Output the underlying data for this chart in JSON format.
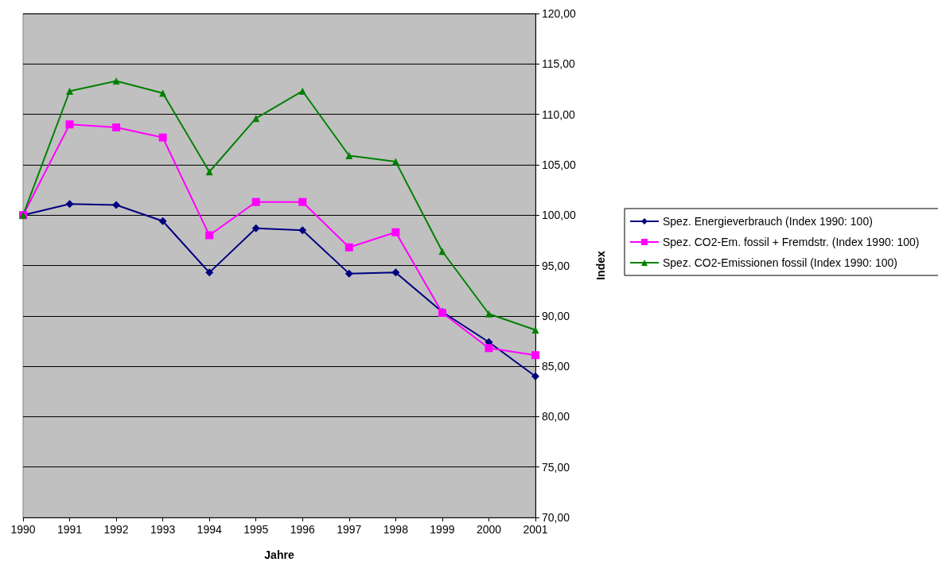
{
  "chart_data": {
    "type": "line",
    "xlabel": "Jahre",
    "ylabel": "Index",
    "categories": [
      "1990",
      "1991",
      "1992",
      "1993",
      "1994",
      "1995",
      "1996",
      "1997",
      "1998",
      "1999",
      "2000",
      "2001"
    ],
    "series": [
      {
        "name": "Spez. Energieverbrauch (Index 1990: 100)",
        "color": "#000080",
        "marker": "diamond",
        "values": [
          100,
          101.1,
          101.0,
          99.4,
          94.3,
          98.7,
          98.5,
          94.2,
          94.3,
          90.4,
          87.4,
          84.0
        ]
      },
      {
        "name": "Spez. CO2-Em. fossil + Fremdstr. (Index 1990: 100)",
        "color": "#ff00ff",
        "marker": "square",
        "values": [
          100,
          109.0,
          108.7,
          107.7,
          98.0,
          101.3,
          101.3,
          96.8,
          98.3,
          90.3,
          86.8,
          86.1
        ]
      },
      {
        "name": "Spez. CO2-Emissionen fossil (Index 1990: 100)",
        "color": "#008000",
        "marker": "triangle",
        "values": [
          100,
          112.3,
          113.3,
          112.1,
          104.3,
          109.6,
          112.3,
          105.9,
          105.3,
          96.4,
          90.2,
          88.6
        ]
      }
    ],
    "ylim": [
      70,
      120
    ],
    "yticks": [
      {
        "value": 70,
        "label": "70,00"
      },
      {
        "value": 75,
        "label": "75,00"
      },
      {
        "value": 80,
        "label": "80,00"
      },
      {
        "value": 85,
        "label": "85,00"
      },
      {
        "value": 90,
        "label": "90,00"
      },
      {
        "value": 95,
        "label": "95,00"
      },
      {
        "value": 100,
        "label": "100,00"
      },
      {
        "value": 105,
        "label": "105,00"
      },
      {
        "value": 110,
        "label": "110,00"
      },
      {
        "value": 115,
        "label": "115,00"
      },
      {
        "value": 120,
        "label": "120,00"
      }
    ],
    "grid": "y",
    "legend": "right",
    "line_style": "solid"
  }
}
